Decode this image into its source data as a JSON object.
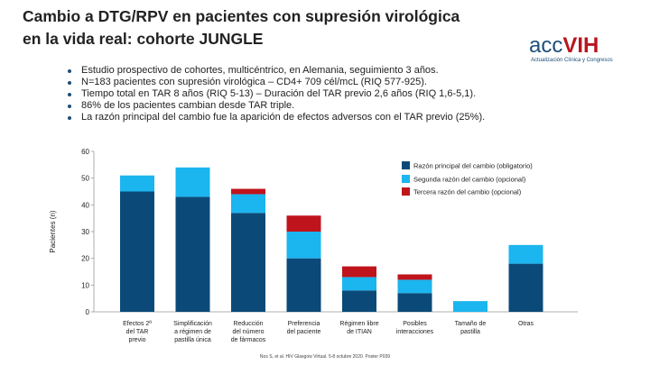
{
  "slide": {
    "title_line1": "Cambio a DTG/RPV en pacientes con supresión virológica",
    "title_line2": "en la vida real: cohorte JUNGLE",
    "logo": {
      "main_left": "acc",
      "main_right": "VIH",
      "subtitle": "Actualización Clínica y Congresos"
    },
    "bullets": [
      "Estudio prospectivo de cohortes, multicéntrico, en Alemania, seguimiento 3 años.",
      "N=183 pacientes con supresión virológica – CD4+ 709 cél/mcL (RIQ 577-925).",
      "Tiempo total en TAR 8 años (RIQ 5-13) – Duración del TAR previo 2,6 años (RIQ 1,6-5,1).",
      "86% de los pacientes cambian desde TAR triple.",
      "La razón principal del cambio fue la aparición de efectos adversos con el TAR previo (25%)."
    ],
    "footer": "Nos S, et al. HIV Glasgow Virtual. 5-8 octubre 2020. Poster P039"
  },
  "colors": {
    "primary": "#0b4a78",
    "secondary": "#1bb5ef",
    "tertiary": "#c0141c"
  },
  "chart_data": {
    "type": "bar",
    "stacked": true,
    "ylabel": "Pacientes (n)",
    "xlabel": "",
    "ylim": [
      0,
      60
    ],
    "yticks": [
      0,
      10,
      20,
      30,
      40,
      50,
      60
    ],
    "grid": false,
    "legend_position": "top-right",
    "categories": [
      [
        "Efectos 2ª",
        "del TAR",
        "previo"
      ],
      [
        "Simplificación",
        "a régimen de",
        "pastilla única"
      ],
      [
        "Reducción",
        "del número",
        "de fármacos"
      ],
      [
        "Preferencia",
        "del paciente"
      ],
      [
        "Régimen libre",
        "de ITIAN"
      ],
      [
        "Posibles",
        "interacciones"
      ],
      [
        "Tamaño de",
        "pastilla"
      ],
      [
        "Otras"
      ]
    ],
    "series": [
      {
        "name": "Razón principal del cambio (obligatorio)",
        "values": [
          45,
          43,
          37,
          20,
          8,
          7,
          0,
          18
        ]
      },
      {
        "name": "Segunda razón del cambio (opcional)",
        "values": [
          6,
          11,
          7,
          10,
          5,
          5,
          4,
          7
        ]
      },
      {
        "name": "Tercera razón del cambio (opcional)",
        "values": [
          0,
          0,
          2,
          6,
          4,
          2,
          0,
          0
        ]
      }
    ]
  }
}
